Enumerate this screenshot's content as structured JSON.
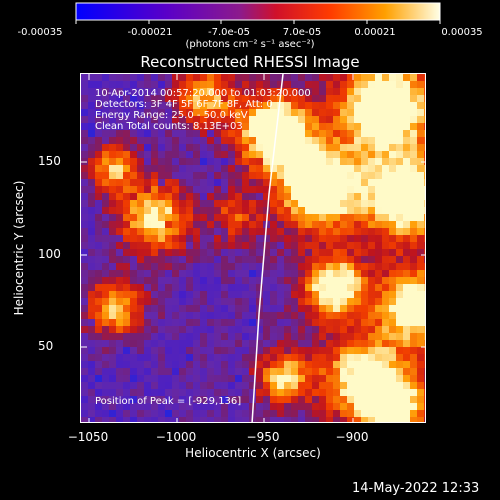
{
  "colorbar": {
    "ticks": [
      "-0.00035",
      "-0.00021",
      "-7.0e-05",
      "7.0e-05",
      "0.00021",
      "0.00035"
    ],
    "unit": "(photons cm⁻² s⁻¹ asec⁻²)",
    "colors": [
      "#0000ff",
      "#5a00c8",
      "#b40064",
      "#ff2800",
      "#ff9600",
      "#ffffff"
    ]
  },
  "image": {
    "title": "Reconstructed RHESSI Image",
    "time_range": "10-Apr-2014 00:57:20.000 to 01:03:20.000",
    "detectors": "Detectors: 3F 4F 5F 6F 7F 8F, Att: 0",
    "energy_range": "Energy Range: 25.0 - 50.0 keV",
    "method": "Clean     Total counts: 8.13E+03",
    "peak": "Position of Peak = [-929,136]",
    "x_ticks": [
      "−1050",
      "−1000",
      "−950",
      "−900"
    ],
    "y_ticks": [
      "150",
      "100",
      "50"
    ],
    "xlabel": "Heliocentric X (arcsec)",
    "ylabel": "Heliocentric Y (arcsec)"
  },
  "footer": {
    "timestamp": "14-May-2022 12:33"
  }
}
